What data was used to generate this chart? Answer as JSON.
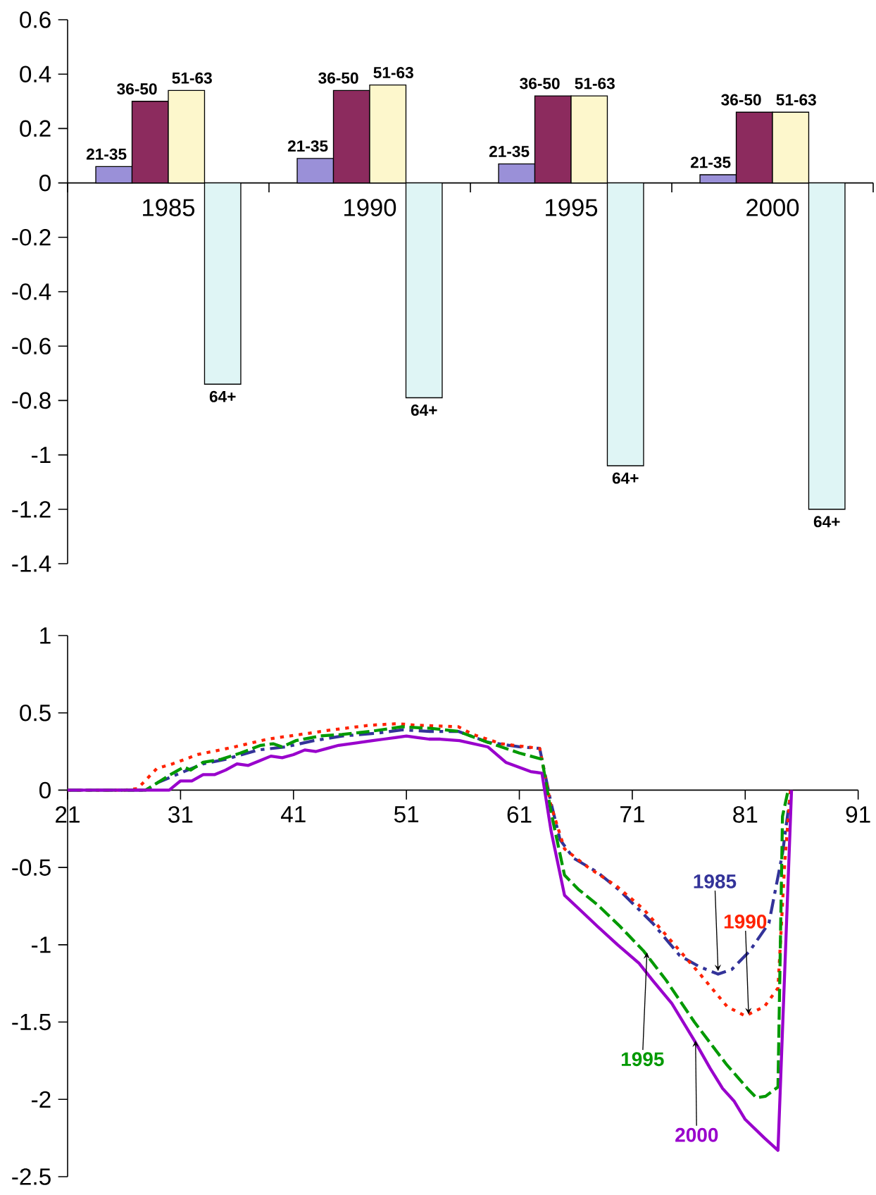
{
  "chart_data": [
    {
      "type": "bar",
      "categories": [
        "1985",
        "1990",
        "1995",
        "2000"
      ],
      "series": [
        {
          "name": "21-35",
          "color": "#9a90d8",
          "values": [
            0.06,
            0.09,
            0.07,
            0.03
          ]
        },
        {
          "name": "36-50",
          "color": "#8c2b5e",
          "values": [
            0.3,
            0.34,
            0.32,
            0.26
          ]
        },
        {
          "name": "51-63",
          "color": "#fdf7cc",
          "values": [
            0.34,
            0.36,
            0.32,
            0.26
          ]
        },
        {
          "name": "64+",
          "color": "#dff5f5",
          "values": [
            -0.74,
            -0.79,
            -1.04,
            -1.2
          ]
        }
      ],
      "ylim": [
        -1.4,
        0.6
      ],
      "yticks": [
        0.6,
        0.4,
        0.2,
        0,
        -0.2,
        -0.4,
        -0.6,
        -0.8,
        -1,
        -1.2,
        -1.4
      ]
    },
    {
      "type": "line",
      "xlim": [
        21,
        91
      ],
      "xticks": [
        21,
        31,
        41,
        51,
        61,
        71,
        81,
        91
      ],
      "ylim": [
        -2.5,
        1
      ],
      "yticks": [
        1,
        0.5,
        0,
        -0.5,
        -1,
        -1.5,
        -2,
        -2.5
      ],
      "series": [
        {
          "name": "1985",
          "color": "#333399",
          "line_style": "dashdot",
          "x": [
            21,
            28,
            29,
            31.3,
            33,
            35,
            37.9,
            40.3,
            42.8,
            45.3,
            48.6,
            50.6,
            53.1,
            55.6,
            58.2,
            61,
            62.8,
            63.8,
            64.6,
            65.8,
            67.9,
            69.9,
            72.8,
            75.2,
            76.9,
            78.6,
            79.8,
            81.4,
            83.1,
            84.3,
            84.9
          ],
          "values": [
            0,
            0,
            0.05,
            0.12,
            0.17,
            0.2,
            0.26,
            0.28,
            0.32,
            0.35,
            0.37,
            0.39,
            0.38,
            0.38,
            0.31,
            0.28,
            0.27,
            -0.08,
            -0.32,
            -0.44,
            -0.53,
            -0.65,
            -0.86,
            -1.07,
            -1.14,
            -1.19,
            -1.16,
            -1.04,
            -0.86,
            -0.41,
            -0.08
          ]
        },
        {
          "name": "1990",
          "color": "#ff2200",
          "line_style": "dotted",
          "x": [
            21,
            26,
            27.2,
            28.9,
            30.3,
            32.5,
            35.8,
            38.7,
            41.6,
            44.4,
            47.8,
            50.2,
            51.9,
            55.6,
            56.9,
            59.4,
            62.8,
            63.8,
            65,
            67.1,
            69.6,
            72,
            74.5,
            77,
            79.4,
            81,
            82.7,
            83.9,
            84.5,
            85
          ],
          "values": [
            0,
            0,
            0.01,
            0.14,
            0.17,
            0.23,
            0.28,
            0.33,
            0.36,
            0.39,
            0.42,
            0.43,
            0.42,
            0.41,
            0.36,
            0.3,
            0.27,
            -0.1,
            -0.38,
            -0.5,
            -0.62,
            -0.77,
            -0.98,
            -1.19,
            -1.4,
            -1.46,
            -1.4,
            -1.28,
            -0.47,
            0
          ]
        },
        {
          "name": "1995",
          "color": "#009900",
          "line_style": "dashed",
          "x": [
            21,
            27.9,
            30.1,
            31.3,
            31.9,
            33,
            34.6,
            36.3,
            38.1,
            39.2,
            40,
            41.2,
            43.3,
            45.3,
            47.8,
            50.6,
            53.1,
            55.6,
            58.2,
            61,
            63,
            63.8,
            65,
            66.2,
            67.9,
            69.9,
            72,
            74,
            76.5,
            79.3,
            81.2,
            82,
            82.8,
            83.9,
            84.3,
            84.8
          ],
          "values": [
            0,
            0,
            0.1,
            0.15,
            0.13,
            0.18,
            0.2,
            0.24,
            0.29,
            0.3,
            0.28,
            0.32,
            0.35,
            0.36,
            0.38,
            0.41,
            0.4,
            0.38,
            0.31,
            0.24,
            0.2,
            -0.14,
            -0.55,
            -0.64,
            -0.74,
            -0.88,
            -1.04,
            -1.23,
            -1.5,
            -1.77,
            -1.93,
            -1.99,
            -1.98,
            -1.92,
            -0.17,
            0
          ]
        },
        {
          "name": "2000",
          "color": "#9900cc",
          "line_style": "solid",
          "x": [
            21,
            30,
            31,
            32,
            33,
            34,
            35,
            36,
            37,
            38,
            39,
            40,
            41,
            42,
            43,
            44,
            45,
            46,
            47,
            48,
            49,
            50,
            51,
            52,
            53,
            54,
            55.7,
            58.2,
            59.8,
            62,
            63,
            63.8,
            65,
            66.6,
            67.9,
            69.7,
            71.6,
            72.8,
            74.5,
            76.5,
            77.9,
            79,
            80,
            81,
            82.7,
            83.9,
            85.1
          ],
          "values": [
            0,
            0,
            0.06,
            0.06,
            0.1,
            0.1,
            0.13,
            0.17,
            0.16,
            0.19,
            0.22,
            0.21,
            0.23,
            0.26,
            0.25,
            0.27,
            0.29,
            0.3,
            0.31,
            0.32,
            0.33,
            0.34,
            0.35,
            0.34,
            0.33,
            0.33,
            0.32,
            0.28,
            0.18,
            0.12,
            0.11,
            -0.26,
            -0.68,
            -0.79,
            -0.88,
            -1,
            -1.12,
            -1.23,
            -1.38,
            -1.62,
            -1.8,
            -1.93,
            -2.01,
            -2.13,
            -2.25,
            -2.33,
            0
          ]
        }
      ]
    }
  ]
}
